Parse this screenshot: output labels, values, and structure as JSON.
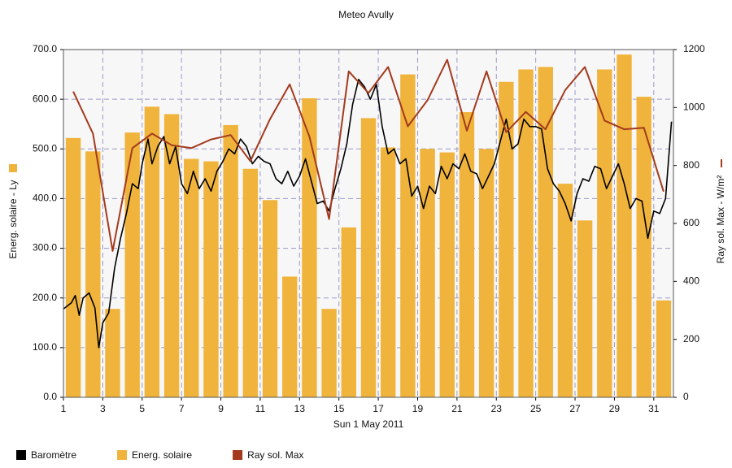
{
  "chart_data": {
    "type": "combo",
    "title": "Meteo  Avully",
    "xlabel": "Sun 1 May 2011",
    "ylabel": "Energ. solaire - Ly",
    "y2label": "Ray sol. Max - W/m²",
    "x": [
      1,
      2,
      3,
      4,
      5,
      6,
      7,
      8,
      9,
      10,
      11,
      12,
      13,
      14,
      15,
      16,
      17,
      18,
      19,
      20,
      21,
      22,
      23,
      24,
      25,
      26,
      27,
      28,
      29,
      30,
      31
    ],
    "xlim": [
      1,
      32
    ],
    "xticks": [
      1,
      3,
      5,
      7,
      9,
      11,
      13,
      15,
      17,
      19,
      21,
      23,
      25,
      27,
      29,
      31
    ],
    "ylim": [
      0,
      700
    ],
    "yticks": [
      {
        "value": 0,
        "label": "0.0"
      },
      {
        "value": 100,
        "label": "100.0"
      },
      {
        "value": 200,
        "label": "200.0"
      },
      {
        "value": 300,
        "label": "300.0"
      },
      {
        "value": 400,
        "label": "400.0"
      },
      {
        "value": 500,
        "label": "500.0"
      },
      {
        "value": 600,
        "label": "600.0"
      },
      {
        "value": 700,
        "label": "700.0"
      }
    ],
    "y2lim": [
      0,
      1200
    ],
    "y2ticks": [
      0,
      200,
      400,
      600,
      800,
      1000,
      1200
    ],
    "grid": true,
    "series": [
      {
        "name": "Baromètre",
        "type": "line",
        "color": "#000000",
        "x": [
          1,
          1.4,
          1.6,
          1.8,
          2,
          2.3,
          2.6,
          2.8,
          3,
          3.3,
          3.6,
          3.9,
          4.2,
          4.5,
          4.8,
          5,
          5.3,
          5.5,
          5.8,
          6.1,
          6.4,
          6.7,
          7,
          7.3,
          7.6,
          7.9,
          8.2,
          8.5,
          8.8,
          9.1,
          9.4,
          9.7,
          10,
          10.3,
          10.6,
          10.9,
          11.2,
          11.5,
          11.8,
          12.1,
          12.4,
          12.7,
          13,
          13.3,
          13.6,
          13.9,
          14.2,
          14.5,
          14.8,
          15.1,
          15.4,
          15.7,
          16,
          16.3,
          16.6,
          16.9,
          17.2,
          17.5,
          17.8,
          18.1,
          18.4,
          18.7,
          19,
          19.3,
          19.6,
          19.9,
          20.2,
          20.5,
          20.8,
          21.1,
          21.4,
          21.7,
          22,
          22.3,
          22.6,
          22.9,
          23.2,
          23.5,
          23.8,
          24.1,
          24.4,
          24.7,
          25,
          25.3,
          25.6,
          25.9,
          26.2,
          26.5,
          26.8,
          27.1,
          27.4,
          27.7,
          28,
          28.3,
          28.6,
          28.9,
          29.2,
          29.5,
          29.8,
          30.1,
          30.4,
          30.7,
          31,
          31.3,
          31.6,
          31.9
        ],
        "values": [
          178,
          190,
          205,
          165,
          200,
          210,
          180,
          100,
          150,
          170,
          260,
          320,
          370,
          430,
          420,
          470,
          520,
          470,
          505,
          525,
          470,
          505,
          430,
          410,
          455,
          420,
          440,
          415,
          455,
          475,
          500,
          490,
          520,
          505,
          470,
          485,
          475,
          470,
          440,
          430,
          455,
          425,
          445,
          480,
          435,
          390,
          395,
          375,
          420,
          460,
          510,
          590,
          640,
          625,
          600,
          630,
          545,
          490,
          500,
          470,
          480,
          405,
          425,
          380,
          425,
          410,
          465,
          440,
          470,
          460,
          490,
          455,
          450,
          420,
          445,
          470,
          515,
          560,
          500,
          510,
          560,
          545,
          545,
          540,
          460,
          430,
          415,
          390,
          355,
          410,
          440,
          435,
          465,
          460,
          420,
          445,
          470,
          430,
          380,
          400,
          395,
          320,
          375,
          370,
          400,
          555
        ]
      },
      {
        "name": "Energ. solaire",
        "type": "bar",
        "color": "#f0b43c",
        "values": [
          522,
          495,
          178,
          533,
          585,
          570,
          480,
          475,
          548,
          460,
          397,
          243,
          602,
          178,
          342,
          562,
          503,
          650,
          500,
          493,
          574,
          500,
          635,
          660,
          665,
          430,
          356,
          660,
          690,
          605,
          195
        ]
      },
      {
        "name": "Ray sol. Max",
        "type": "line",
        "axis": "y2",
        "color": "#a33a1e",
        "values": [
          1055,
          910,
          505,
          860,
          910,
          870,
          860,
          890,
          905,
          815,
          960,
          1080,
          900,
          615,
          1125,
          1050,
          1140,
          935,
          1025,
          1165,
          920,
          1125,
          915,
          985,
          925,
          1060,
          1140,
          955,
          925,
          930,
          710
        ]
      }
    ]
  }
}
